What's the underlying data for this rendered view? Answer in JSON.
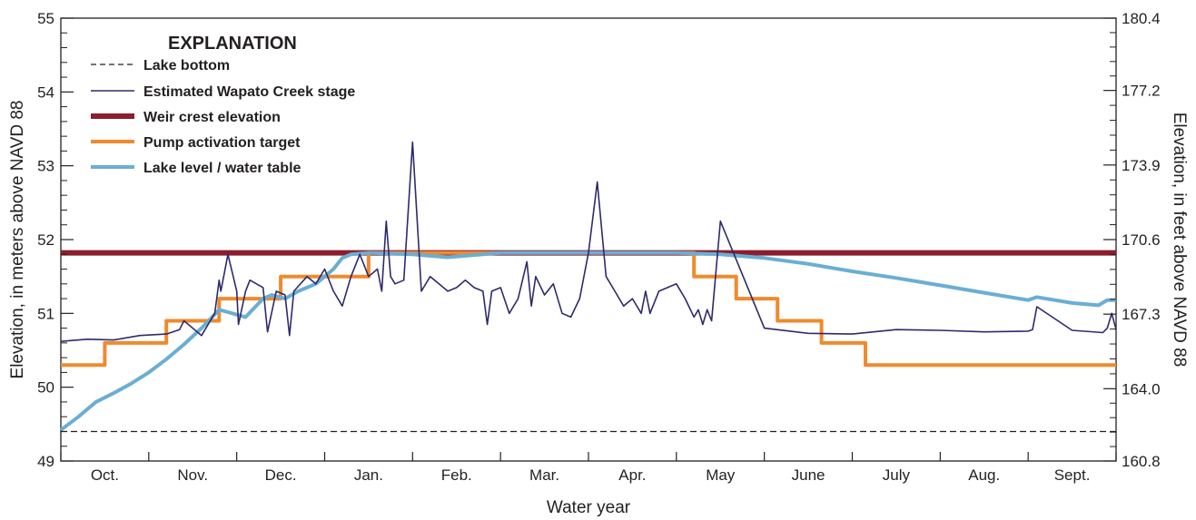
{
  "chart_data": {
    "type": "line",
    "xlabel": "Water year",
    "ylabel_left": "Elevation, in meters above NAVD 88",
    "ylabel_right": "Elevation, in feet above NAVD 88",
    "x_categories": [
      "Oct.",
      "Nov.",
      "Dec.",
      "Jan.",
      "Feb.",
      "Mar.",
      "Apr.",
      "May",
      "June",
      "July",
      "Aug.",
      "Sept."
    ],
    "xlim": [
      0,
      12
    ],
    "ylim_left": [
      49,
      55
    ],
    "yticks_left": [
      "49",
      "50",
      "51",
      "52",
      "53",
      "54",
      "55"
    ],
    "ylim_right": [
      160.8,
      180.4
    ],
    "yticks_right": [
      "160.8",
      "164.0",
      "167.3",
      "170.6",
      "173.9",
      "177.2",
      "180.4"
    ],
    "grid": false,
    "legend": {
      "title": "EXPLANATION",
      "position": "top-left",
      "entries": [
        {
          "label": "Lake bottom",
          "color": "#231f20",
          "style": "dashed"
        },
        {
          "label": "Estimated Wapato Creek stage",
          "color": "#2e2a6b",
          "style": "thin"
        },
        {
          "label": "Weir crest elevation",
          "color": "#8b1e2e",
          "style": "thick"
        },
        {
          "label": "Pump activation target",
          "color": "#f08a2d",
          "style": "medium"
        },
        {
          "label": "Lake level / water table",
          "color": "#6aaed3",
          "style": "medium"
        }
      ]
    },
    "series": [
      {
        "name": "Lake bottom",
        "color": "#231f20",
        "x": [
          0,
          12
        ],
        "y": [
          49.4,
          49.4
        ]
      },
      {
        "name": "Weir crest elevation",
        "color": "#8b1e2e",
        "x": [
          0,
          12
        ],
        "y": [
          51.82,
          51.82
        ]
      },
      {
        "name": "Pump activation target",
        "color": "#f08a2d",
        "x": [
          0,
          0.5,
          0.5,
          1.2,
          1.2,
          1.8,
          1.8,
          2.5,
          2.5,
          3.5,
          3.5,
          4.5,
          4.5,
          7.2,
          7.2,
          7.68,
          7.68,
          8.15,
          8.15,
          8.65,
          8.65,
          9.15,
          9.15,
          12
        ],
        "y": [
          50.3,
          50.3,
          50.6,
          50.6,
          50.9,
          50.9,
          51.2,
          51.2,
          51.5,
          51.5,
          51.82,
          51.82,
          51.82,
          51.82,
          51.5,
          51.5,
          51.2,
          51.2,
          50.9,
          50.9,
          50.6,
          50.6,
          50.3,
          50.3
        ]
      },
      {
        "name": "Lake level / water table",
        "color": "#6aaed3",
        "x": [
          0,
          0.2,
          0.4,
          0.6,
          0.8,
          1.0,
          1.2,
          1.4,
          1.6,
          1.8,
          1.95,
          2.1,
          2.3,
          2.4,
          2.55,
          2.7,
          2.9,
          3.0,
          3.1,
          3.2,
          3.3,
          3.5,
          4.0,
          4.4,
          5.0,
          6.0,
          7.0,
          7.5,
          8.0,
          8.5,
          9.0,
          9.5,
          10.0,
          10.5,
          11.0,
          11.1,
          11.5,
          11.8,
          11.9,
          12.0
        ],
        "y": [
          49.42,
          49.6,
          49.8,
          49.92,
          50.05,
          50.2,
          50.38,
          50.58,
          50.8,
          51.05,
          51.0,
          50.95,
          51.2,
          51.25,
          51.2,
          51.3,
          51.4,
          51.5,
          51.6,
          51.75,
          51.8,
          51.82,
          51.8,
          51.76,
          51.82,
          51.82,
          51.82,
          51.8,
          51.75,
          51.67,
          51.57,
          51.48,
          51.38,
          51.28,
          51.18,
          51.22,
          51.14,
          51.11,
          51.18,
          51.18
        ]
      },
      {
        "name": "Estimated Wapato Creek stage",
        "color": "#2e2a6b",
        "x": [
          0,
          0.3,
          0.6,
          0.9,
          1.2,
          1.35,
          1.4,
          1.55,
          1.6,
          1.75,
          1.8,
          1.82,
          1.9,
          2.0,
          2.02,
          2.1,
          2.15,
          2.3,
          2.35,
          2.45,
          2.55,
          2.6,
          2.65,
          2.8,
          2.9,
          3.0,
          3.1,
          3.2,
          3.3,
          3.4,
          3.5,
          3.6,
          3.65,
          3.7,
          3.75,
          3.8,
          3.9,
          4.0,
          4.1,
          4.2,
          4.3,
          4.4,
          4.5,
          4.6,
          4.7,
          4.8,
          4.85,
          4.9,
          5.0,
          5.1,
          5.2,
          5.3,
          5.35,
          5.4,
          5.5,
          5.6,
          5.7,
          5.8,
          5.9,
          6.0,
          6.1,
          6.2,
          6.3,
          6.4,
          6.5,
          6.6,
          6.65,
          6.7,
          6.8,
          7.0,
          7.1,
          7.2,
          7.25,
          7.3,
          7.35,
          7.4,
          7.5,
          8.0,
          8.5,
          9.0,
          9.5,
          10.0,
          10.5,
          11.0,
          11.05,
          11.1,
          11.5,
          11.85,
          11.9,
          11.95,
          12.0
        ],
        "y": [
          50.62,
          50.65,
          50.64,
          50.7,
          50.72,
          50.78,
          50.9,
          50.75,
          50.7,
          51.0,
          51.45,
          51.3,
          51.8,
          51.3,
          50.85,
          51.3,
          51.45,
          51.35,
          50.75,
          51.3,
          51.25,
          50.7,
          51.3,
          51.5,
          51.4,
          51.6,
          51.3,
          51.1,
          51.5,
          51.8,
          51.5,
          51.6,
          51.3,
          52.25,
          51.5,
          51.4,
          51.45,
          53.32,
          51.3,
          51.5,
          51.4,
          51.3,
          51.35,
          51.45,
          51.35,
          51.3,
          50.85,
          51.3,
          51.35,
          51.0,
          51.2,
          51.7,
          51.1,
          51.5,
          51.25,
          51.4,
          51.0,
          50.95,
          51.2,
          51.82,
          52.78,
          51.5,
          51.3,
          51.1,
          51.2,
          51.0,
          51.3,
          51.0,
          51.3,
          51.4,
          51.2,
          50.95,
          51.05,
          50.85,
          51.05,
          50.9,
          52.25,
          50.8,
          50.73,
          50.72,
          50.78,
          50.77,
          50.75,
          50.76,
          50.78,
          51.09,
          50.77,
          50.74,
          50.8,
          51.0,
          50.78
        ]
      }
    ]
  }
}
